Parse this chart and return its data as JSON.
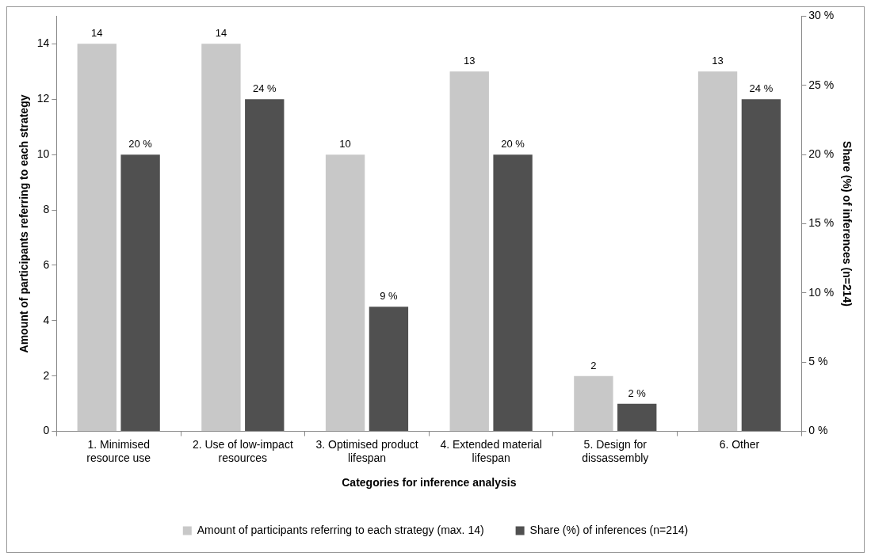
{
  "chart_data": {
    "type": "bar",
    "xlabel": "Categories for inference analysis",
    "ylabel": "Amount of participants referring to each strategy",
    "y2label": "Share (%) of inferences (n=214)",
    "categories": [
      "1. Minimised resource use",
      "2. Use of low-impact resources",
      "3. Optimised product lifespan",
      "4. Extended material lifespan",
      "5. Design for dissassembly",
      "6. Other"
    ],
    "series": [
      {
        "name": "Amount of participants referring to each strategy (max. 14)",
        "color": "#c8c8c8",
        "values": [
          14,
          14,
          10,
          13,
          2,
          13
        ],
        "value_labels": [
          "14",
          "14",
          "10",
          "13",
          "2",
          "13"
        ]
      },
      {
        "name": "Share (%) of inferences (n=214)",
        "color": "#505050",
        "axis": "y2",
        "values": [
          20,
          24,
          9,
          20,
          2,
          24
        ],
        "value_labels": [
          "20 %",
          "24 %",
          "9 %",
          "20 %",
          "2 %",
          "24 %"
        ]
      }
    ],
    "ylim": [
      0,
      15
    ],
    "yticks": [
      0,
      2,
      4,
      6,
      8,
      10,
      12,
      14
    ],
    "y2lim": [
      0,
      30
    ],
    "y2ticks": [
      {
        "value": 0,
        "label": "0 %"
      },
      {
        "value": 5,
        "label": "5 %"
      },
      {
        "value": 10,
        "label": "10 %"
      },
      {
        "value": 15,
        "label": "15 %"
      },
      {
        "value": 20,
        "label": "20 %"
      },
      {
        "value": 25,
        "label": "25 %"
      },
      {
        "value": 30,
        "label": "30 %"
      }
    ],
    "grid": false,
    "legend": "bottom"
  }
}
